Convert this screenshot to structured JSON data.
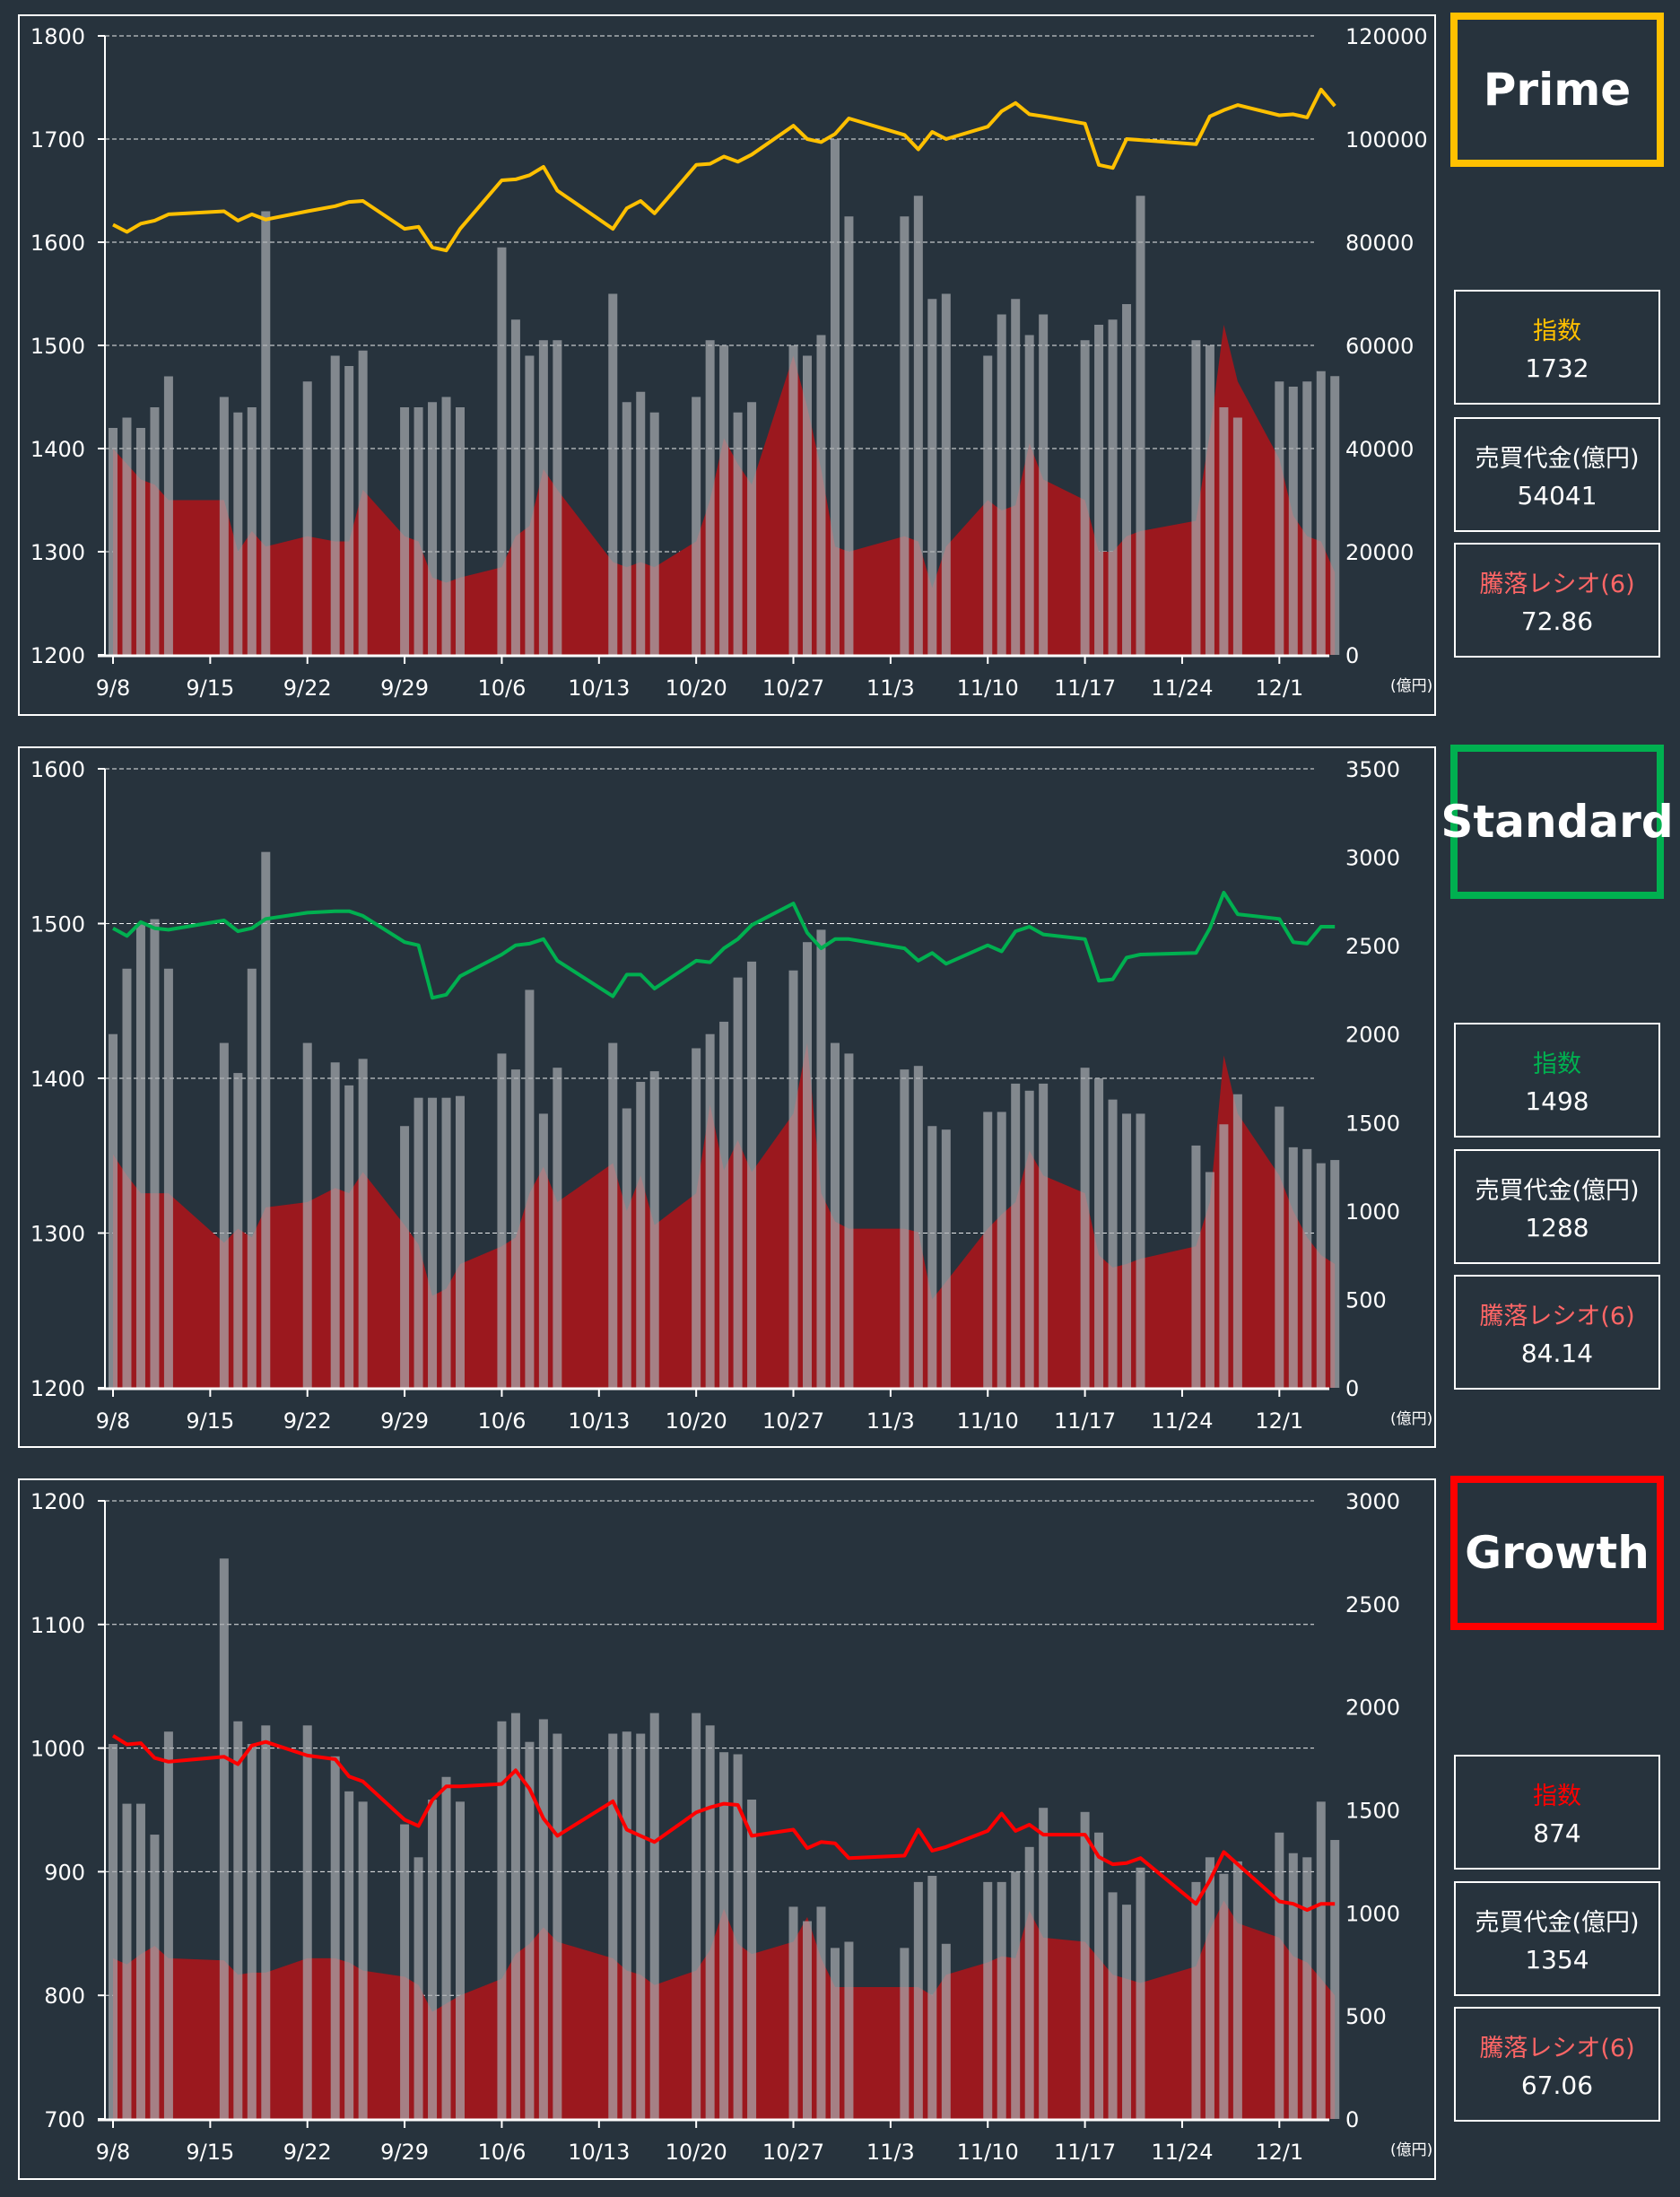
{
  "colors": {
    "background": "#27333d",
    "volume_bar": "#8a8f93",
    "ratio_area": "#9b181e",
    "prime": "#ffc000",
    "standard": "#00b050",
    "growth": "#ff0000",
    "ratio_label": "#ff6666"
  },
  "x_axis": {
    "tick_labels": [
      "9/8",
      "9/15",
      "9/22",
      "9/29",
      "10/6",
      "10/13",
      "10/20",
      "10/27",
      "11/3",
      "11/10",
      "11/17",
      "11/24",
      "12/1"
    ],
    "tick_day_offsets": [
      0,
      7,
      14,
      21,
      28,
      35,
      42,
      49,
      56,
      63,
      70,
      77,
      84
    ],
    "unit_label": "(億円)"
  },
  "trading_day_offsets": [
    0,
    1,
    2,
    3,
    4,
    8,
    9,
    10,
    11,
    14,
    16,
    17,
    18,
    21,
    22,
    23,
    24,
    25,
    28,
    29,
    30,
    31,
    32,
    36,
    37,
    38,
    39,
    42,
    43,
    44,
    45,
    46,
    49,
    50,
    51,
    52,
    53,
    57,
    58,
    59,
    60,
    63,
    64,
    65,
    66,
    67,
    70,
    71,
    72,
    73,
    74,
    78,
    79,
    80,
    81,
    84,
    85,
    86,
    87,
    88
  ],
  "markets": [
    {
      "key": "prime",
      "name": "Prime",
      "index_label": "指数",
      "index_value": "1732",
      "turnover_label": "売買代金(億円)",
      "turnover_value": "54041",
      "ratio_label": "騰落レシオ(6)",
      "ratio_value": "72.86"
    },
    {
      "key": "standard",
      "name": "Standard",
      "index_label": "指数",
      "index_value": "1498",
      "turnover_label": "売買代金(億円)",
      "turnover_value": "1288",
      "ratio_label": "騰落レシオ(6)",
      "ratio_value": "84.14"
    },
    {
      "key": "growth",
      "name": "Growth",
      "index_label": "指数",
      "index_value": "874",
      "turnover_label": "売買代金(億円)",
      "turnover_value": "1354",
      "ratio_label": "騰落レシオ(6)",
      "ratio_value": "67.06"
    }
  ],
  "chart_data": [
    {
      "type": "line",
      "title": "Prime",
      "left_axis": {
        "min": 1200,
        "max": 1800,
        "ticks": [
          1200,
          1300,
          1400,
          1500,
          1600,
          1700,
          1800
        ]
      },
      "right_axis": {
        "min": 0,
        "max": 120000,
        "ticks": [
          0,
          20000,
          40000,
          60000,
          80000,
          100000,
          120000
        ],
        "unit": "(億円)"
      },
      "grid": true,
      "series": [
        {
          "name": "指数",
          "type": "line",
          "axis": "left",
          "values": [
            1617,
            1610,
            1618,
            1621,
            1627,
            1630,
            1621,
            1627,
            1622,
            1630,
            1635,
            1639,
            1640,
            1613,
            1615,
            1595,
            1592,
            1613,
            1660,
            1661,
            1665,
            1673,
            1650,
            1613,
            1633,
            1640,
            1628,
            1675,
            1676,
            1683,
            1678,
            1685,
            1713,
            1700,
            1697,
            1705,
            1720,
            1704,
            1690,
            1707,
            1700,
            1712,
            1727,
            1735,
            1724,
            1722,
            1715,
            1675,
            1672,
            1700,
            1699,
            1695,
            1722,
            1728,
            1733,
            1723,
            1724,
            1721,
            1748,
            1732
          ]
        },
        {
          "name": "売買代金",
          "type": "bar",
          "axis": "right",
          "values": [
            44000,
            46000,
            44000,
            48000,
            54000,
            50000,
            47000,
            48000,
            86000,
            53000,
            58000,
            56000,
            59000,
            48000,
            48000,
            49000,
            50000,
            48000,
            79000,
            65000,
            58000,
            61000,
            61000,
            70000,
            49000,
            51000,
            47000,
            50000,
            61000,
            60000,
            47000,
            49000,
            60000,
            58000,
            62000,
            100000,
            85000,
            85000,
            89000,
            69000,
            70000,
            58000,
            66000,
            69000,
            62000,
            66000,
            61000,
            64000,
            65000,
            68000,
            89000,
            61000,
            60000,
            48000,
            46000,
            53000,
            52000,
            53000,
            55000,
            54041
          ]
        },
        {
          "name": "騰落レシオ",
          "type": "area",
          "axis": "right",
          "values": [
            40000,
            37000,
            34000,
            33000,
            30000,
            30000,
            20000,
            24000,
            21000,
            23000,
            22000,
            22000,
            32000,
            23000,
            22000,
            15000,
            14000,
            15000,
            17000,
            23000,
            25000,
            36000,
            32000,
            18000,
            17000,
            18000,
            17000,
            22000,
            30000,
            42000,
            37000,
            33000,
            58000,
            48000,
            36000,
            21000,
            20000,
            23000,
            22000,
            13000,
            21000,
            30000,
            28000,
            29000,
            41000,
            34000,
            30000,
            20000,
            20000,
            23000,
            24000,
            26000,
            43000,
            64000,
            53000,
            38000,
            27000,
            23000,
            22000,
            16000
          ]
        }
      ]
    },
    {
      "type": "line",
      "title": "Standard",
      "left_axis": {
        "min": 1200,
        "max": 1600,
        "ticks": [
          1200,
          1300,
          1400,
          1500,
          1600
        ]
      },
      "right_axis": {
        "min": 0,
        "max": 3500,
        "ticks": [
          0,
          500,
          1000,
          1500,
          2000,
          2500,
          3000,
          3500
        ],
        "unit": "(億円)"
      },
      "grid": true,
      "series": [
        {
          "name": "指数",
          "type": "line",
          "axis": "left",
          "values": [
            1497,
            1492,
            1501,
            1497,
            1496,
            1502,
            1495,
            1497,
            1503,
            1507,
            1508,
            1508,
            1505,
            1488,
            1486,
            1452,
            1454,
            1466,
            1480,
            1486,
            1487,
            1490,
            1476,
            1453,
            1467,
            1467,
            1458,
            1476,
            1475,
            1484,
            1490,
            1499,
            1513,
            1494,
            1484,
            1490,
            1490,
            1484,
            1476,
            1481,
            1474,
            1486,
            1482,
            1495,
            1498,
            1493,
            1490,
            1463,
            1464,
            1478,
            1480,
            1481,
            1497,
            1520,
            1506,
            1503,
            1488,
            1487,
            1498,
            1498
          ]
        },
        {
          "name": "売買代金",
          "type": "bar",
          "axis": "right",
          "values": [
            2000,
            2370,
            2620,
            2650,
            2370,
            1950,
            1780,
            2370,
            3030,
            1950,
            1840,
            1710,
            1860,
            1480,
            1640,
            1640,
            1640,
            1650,
            1890,
            1800,
            2250,
            1550,
            1810,
            1950,
            1580,
            1730,
            1790,
            1920,
            2000,
            2070,
            2320,
            2410,
            2360,
            2520,
            2590,
            1950,
            1890,
            1800,
            1820,
            1480,
            1460,
            1560,
            1560,
            1720,
            1680,
            1720,
            1810,
            1750,
            1630,
            1550,
            1550,
            1370,
            1220,
            1490,
            1660,
            1590,
            1360,
            1350,
            1270,
            1288
          ]
        },
        {
          "name": "騰落レシオ",
          "type": "area",
          "axis": "right",
          "values": [
            1320,
            1200,
            1100,
            1100,
            1100,
            820,
            900,
            850,
            1020,
            1050,
            1130,
            1100,
            1220,
            920,
            810,
            520,
            560,
            700,
            800,
            850,
            1100,
            1250,
            1050,
            1270,
            1000,
            1200,
            920,
            1100,
            1600,
            1230,
            1400,
            1220,
            1550,
            1950,
            1100,
            940,
            900,
            900,
            880,
            500,
            600,
            900,
            980,
            1050,
            1340,
            1200,
            1100,
            750,
            680,
            700,
            730,
            800,
            1050,
            1880,
            1550,
            1200,
            1000,
            850,
            750,
            700
          ]
        }
      ]
    },
    {
      "type": "line",
      "title": "Growth",
      "left_axis": {
        "min": 700,
        "max": 1200,
        "ticks": [
          700,
          800,
          900,
          1000,
          1100,
          1200
        ]
      },
      "right_axis": {
        "min": 0,
        "max": 3000,
        "ticks": [
          0,
          500,
          1000,
          1500,
          2000,
          2500,
          3000
        ],
        "unit": "(億円)"
      },
      "grid": true,
      "series": [
        {
          "name": "指数",
          "type": "line",
          "axis": "left",
          "values": [
            1010,
            1003,
            1004,
            992,
            989,
            993,
            987,
            1002,
            1005,
            994,
            991,
            977,
            973,
            942,
            937,
            958,
            969,
            969,
            971,
            982,
            967,
            943,
            929,
            957,
            934,
            929,
            924,
            948,
            952,
            955,
            954,
            929,
            934,
            919,
            924,
            923,
            911,
            913,
            934,
            917,
            920,
            933,
            947,
            933,
            938,
            930,
            930,
            912,
            906,
            907,
            911,
            874,
            893,
            916,
            906,
            876,
            874,
            869,
            874,
            874
          ]
        },
        {
          "name": "売買代金",
          "type": "bar",
          "axis": "right",
          "values": [
            1820,
            1530,
            1530,
            1380,
            1880,
            2720,
            1930,
            1820,
            1910,
            1910,
            1760,
            1590,
            1540,
            1430,
            1270,
            1550,
            1660,
            1540,
            1930,
            1970,
            1830,
            1940,
            1870,
            1870,
            1880,
            1870,
            1970,
            1970,
            1910,
            1780,
            1770,
            1550,
            1030,
            960,
            1030,
            830,
            860,
            830,
            1150,
            1180,
            850,
            1150,
            1150,
            1200,
            1320,
            1510,
            1490,
            1390,
            1100,
            1040,
            1220,
            1150,
            1270,
            1190,
            1250,
            1390,
            1290,
            1270,
            1540,
            1354
          ]
        },
        {
          "name": "騰落レシオ",
          "type": "area",
          "axis": "right",
          "values": [
            780,
            750,
            800,
            840,
            780,
            770,
            700,
            710,
            710,
            780,
            780,
            760,
            720,
            690,
            650,
            520,
            560,
            600,
            680,
            800,
            850,
            930,
            860,
            780,
            720,
            700,
            650,
            720,
            820,
            1020,
            850,
            800,
            860,
            980,
            780,
            640,
            640,
            640,
            640,
            600,
            700,
            760,
            790,
            780,
            1010,
            880,
            860,
            780,
            700,
            680,
            660,
            740,
            920,
            1060,
            950,
            880,
            790,
            760,
            680,
            600
          ]
        }
      ]
    }
  ]
}
